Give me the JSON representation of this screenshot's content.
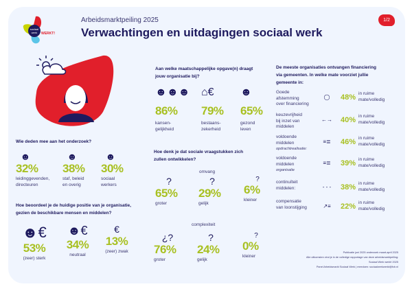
{
  "header": {
    "subtitle": "Arbeidsmarktpeiling 2025",
    "title": "Verwachtingen en uitdagingen sociaal werk",
    "page_badge": "1/2",
    "logo_text": "sociaal werk WERKT!"
  },
  "colors": {
    "navy": "#1e1a5e",
    "green": "#a8c021",
    "red": "#e11f2b",
    "background": "#f0f5fe"
  },
  "participants": {
    "question": "Wie deden mee aan het onderzoek?",
    "items": [
      {
        "pct": "32%",
        "label1": "leidinggevenden,",
        "label2": "directeuren",
        "icon": "person-icon"
      },
      {
        "pct": "38%",
        "label1": "staf, beleid",
        "label2": "en overig",
        "icon": "person-icon"
      },
      {
        "pct": "30%",
        "label1": "sociaal",
        "label2": "werkers",
        "icon": "person-icon"
      }
    ]
  },
  "position": {
    "question1": "Hoe beoordeel je de huidige positie van je organisatie,",
    "question2": "gezien de beschikbare mensen en middelen?",
    "items": [
      {
        "pct": "53%",
        "label": "(zeer) sterk"
      },
      {
        "pct": "34%",
        "label": "neutraal"
      },
      {
        "pct": "13%",
        "label": "(zeer) zwak"
      }
    ]
  },
  "tasks": {
    "question1": "Aan welke maatschappelijke opgave(n) draagt",
    "question2": "jouw organisatie bij?",
    "items": [
      {
        "pct": "86%",
        "label1": "kansen-",
        "label2": "gelijkheid",
        "icon": "people-icon"
      },
      {
        "pct": "79%",
        "label1": "bestaans-",
        "label2": "zekerheid",
        "icon": "house-euro-icon"
      },
      {
        "pct": "65%",
        "label1": "gezond",
        "label2": "leven",
        "icon": "strong-person-icon"
      }
    ]
  },
  "issues": {
    "question1": "Hoe denk je dat sociale vraagstukken zich",
    "question2": "zullen ontwikkelen?",
    "omvang": {
      "heading": "omvang",
      "items": [
        {
          "pct": "65%",
          "label": "groter"
        },
        {
          "pct": "29%",
          "label": "gelijk"
        },
        {
          "pct": "6%",
          "label": "kleiner"
        }
      ]
    },
    "complexiteit": {
      "heading": "complexiteit",
      "items": [
        {
          "pct": "76%",
          "label": "groter"
        },
        {
          "pct": "24%",
          "label": "gelijk"
        },
        {
          "pct": "0%",
          "label": "kleiner"
        }
      ]
    }
  },
  "financing": {
    "question1": "De meeste organisaties ontvangen financiering",
    "question2": "via gemeenten. In welke mate voorziet jullie",
    "question3": "gemeente in:",
    "items": [
      {
        "l1": "Goede",
        "l2": "afstemming",
        "l3": "over financiering",
        "icon": "◯",
        "pct": "48%",
        "r1": "in ruime",
        "r2": "mate/volledig"
      },
      {
        "l1": "keuzevrijheid",
        "l2": "bij inzet van",
        "l3": "middelen",
        "icon": "←→",
        "pct": "40%",
        "r1": "in ruime",
        "r2": "mate/volledig"
      },
      {
        "l1": "voldoende",
        "l2": "middelen",
        "l3": "opdrachtrealisatie:",
        "icon": "≡≣",
        "pct": "46%",
        "r1": "in ruime",
        "r2": "mate/volledig"
      },
      {
        "l1": "voldoende",
        "l2": "middelen",
        "l3": "organisatie",
        "icon": "≡≣",
        "pct": "39%",
        "r1": "in ruime",
        "r2": "mate/volledig"
      },
      {
        "l1": "continuïteit",
        "l2": "middelen:",
        "l3": "",
        "icon": "- - -",
        "pct": "38%",
        "r1": "in ruime",
        "r2": "mate/volledig"
      },
      {
        "l1": "compensatie",
        "l2": "van loonstijging",
        "l3": "",
        "icon": "↗≡",
        "pct": "22%",
        "r1": "in ruime",
        "r2": "mate/volledig"
      }
    ]
  },
  "footer": [
    "Publicatie juni 2025 onderzoek maart-april 2025",
    "Alle uitkomsten vind je in de volledige rapportage van deze arbeidsmarktpeiling:",
    "Sociaal Werk werkt! 2025",
    "Panel Arbeidsmarkt Sociaal Werk  |  meedoen: sociaalwerkwerkt@fcb.nl"
  ]
}
